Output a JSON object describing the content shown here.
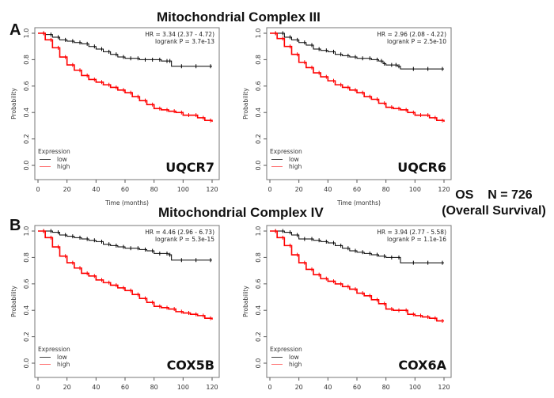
{
  "figure": {
    "section_a": {
      "letter": "A",
      "title": "Mitochondrial Complex III"
    },
    "section_b": {
      "letter": "B",
      "title": "Mitochondrial Complex IV"
    },
    "os_label": "OS    N = 726",
    "os_sublabel": "(Overall Survival)"
  },
  "chart_data": [
    {
      "type": "line",
      "gene": "UQCR7",
      "title": "UQCR7",
      "xlabel": "Time (months)",
      "ylabel": "Probability",
      "xlim": [
        0,
        120
      ],
      "ylim": [
        0,
        1
      ],
      "xticks": [
        "0",
        "20",
        "40",
        "60",
        "80",
        "100",
        "120"
      ],
      "yticks": [
        "0.0",
        "0.2",
        "0.4",
        "0.6",
        "0.8",
        "1.0"
      ],
      "annotation": [
        "HR = 3.34 (2.37 - 4.72)",
        "logrank P = 3.7e-13"
      ],
      "legend": {
        "title": "Expression",
        "placement": "bottom-left",
        "entries": [
          {
            "name": "low",
            "color": "#000000"
          },
          {
            "name": "high",
            "color": "#ff0000"
          }
        ]
      },
      "series": [
        {
          "name": "low",
          "color": "#000000",
          "x": [
            0,
            5,
            10,
            15,
            20,
            25,
            30,
            35,
            40,
            45,
            50,
            55,
            60,
            65,
            70,
            75,
            80,
            85,
            90,
            92,
            100,
            110,
            120
          ],
          "y": [
            1.0,
            0.99,
            0.97,
            0.95,
            0.94,
            0.93,
            0.92,
            0.9,
            0.88,
            0.86,
            0.84,
            0.82,
            0.81,
            0.81,
            0.8,
            0.8,
            0.8,
            0.79,
            0.79,
            0.75,
            0.75,
            0.75,
            0.75
          ]
        },
        {
          "name": "high",
          "color": "#ff0000",
          "x": [
            0,
            5,
            10,
            15,
            20,
            25,
            30,
            35,
            40,
            45,
            50,
            55,
            60,
            65,
            70,
            75,
            80,
            85,
            90,
            95,
            100,
            105,
            110,
            115,
            120
          ],
          "y": [
            1.0,
            0.95,
            0.89,
            0.82,
            0.76,
            0.72,
            0.68,
            0.65,
            0.63,
            0.61,
            0.59,
            0.57,
            0.55,
            0.52,
            0.49,
            0.46,
            0.43,
            0.42,
            0.41,
            0.4,
            0.38,
            0.38,
            0.36,
            0.34,
            0.33
          ]
        }
      ]
    },
    {
      "type": "line",
      "gene": "UQCR6",
      "title": "UQCR6",
      "xlabel": "Time (months)",
      "ylabel": "Probability",
      "xlim": [
        0,
        120
      ],
      "ylim": [
        0,
        1
      ],
      "xticks": [
        "0",
        "20",
        "40",
        "60",
        "80",
        "100",
        "120"
      ],
      "yticks": [
        "0.0",
        "0.2",
        "0.4",
        "0.6",
        "0.8",
        "1.0"
      ],
      "annotation": [
        "HR = 2.96 (2.08 - 4.22)",
        "logrank P = 2.5e-10"
      ],
      "legend": {
        "title": "Expression",
        "placement": "bottom-left",
        "entries": [
          {
            "name": "low",
            "color": "#000000"
          },
          {
            "name": "high",
            "color": "#ff0000"
          }
        ]
      },
      "series": [
        {
          "name": "low",
          "color": "#000000",
          "x": [
            0,
            5,
            10,
            15,
            20,
            25,
            30,
            35,
            40,
            45,
            50,
            55,
            60,
            65,
            70,
            75,
            78,
            80,
            85,
            88,
            90,
            100,
            110,
            120
          ],
          "y": [
            1.0,
            1.0,
            0.97,
            0.95,
            0.93,
            0.91,
            0.88,
            0.87,
            0.86,
            0.84,
            0.83,
            0.82,
            0.81,
            0.81,
            0.8,
            0.79,
            0.77,
            0.76,
            0.76,
            0.75,
            0.73,
            0.73,
            0.73,
            0.73
          ]
        },
        {
          "name": "high",
          "color": "#ff0000",
          "x": [
            0,
            5,
            10,
            15,
            20,
            25,
            30,
            35,
            40,
            45,
            50,
            55,
            60,
            65,
            70,
            75,
            80,
            85,
            90,
            95,
            100,
            105,
            110,
            115,
            120
          ],
          "y": [
            1.0,
            0.96,
            0.9,
            0.84,
            0.78,
            0.74,
            0.7,
            0.67,
            0.64,
            0.61,
            0.59,
            0.57,
            0.55,
            0.52,
            0.5,
            0.47,
            0.44,
            0.43,
            0.42,
            0.4,
            0.38,
            0.38,
            0.36,
            0.34,
            0.33
          ]
        }
      ]
    },
    {
      "type": "line",
      "gene": "COX5B",
      "title": "COX5B",
      "xlabel": "Time (months)",
      "ylabel": "Probability",
      "xlim": [
        0,
        120
      ],
      "ylim": [
        0,
        1
      ],
      "xticks": [
        "0",
        "20",
        "40",
        "60",
        "80",
        "100",
        "120"
      ],
      "yticks": [
        "0.0",
        "0.2",
        "0.4",
        "0.6",
        "0.8",
        "1.0"
      ],
      "annotation": [
        "HR = 4.46 (2.96 - 6.73)",
        "logrank P = 5.3e-15"
      ],
      "legend": {
        "title": "Expression",
        "placement": "bottom-left",
        "entries": [
          {
            "name": "low",
            "color": "#000000"
          },
          {
            "name": "high",
            "color": "#ff0000"
          }
        ]
      },
      "series": [
        {
          "name": "low",
          "color": "#000000",
          "x": [
            0,
            5,
            10,
            15,
            20,
            25,
            30,
            35,
            40,
            45,
            50,
            55,
            60,
            65,
            70,
            75,
            80,
            85,
            90,
            92,
            100,
            110,
            120
          ],
          "y": [
            1.0,
            1.0,
            0.99,
            0.97,
            0.96,
            0.95,
            0.94,
            0.93,
            0.92,
            0.9,
            0.89,
            0.88,
            0.87,
            0.87,
            0.86,
            0.85,
            0.83,
            0.83,
            0.82,
            0.78,
            0.78,
            0.78,
            0.78
          ]
        },
        {
          "name": "high",
          "color": "#ff0000",
          "x": [
            0,
            5,
            10,
            15,
            20,
            25,
            30,
            35,
            40,
            45,
            50,
            55,
            60,
            65,
            70,
            75,
            80,
            85,
            90,
            95,
            100,
            105,
            110,
            115,
            120
          ],
          "y": [
            1.0,
            0.95,
            0.88,
            0.81,
            0.76,
            0.72,
            0.68,
            0.66,
            0.63,
            0.61,
            0.59,
            0.57,
            0.55,
            0.52,
            0.49,
            0.46,
            0.43,
            0.42,
            0.41,
            0.39,
            0.38,
            0.37,
            0.36,
            0.34,
            0.33
          ]
        }
      ]
    },
    {
      "type": "line",
      "gene": "COX6A",
      "title": "COX6A",
      "xlabel": "Time (months)",
      "ylabel": "Probability",
      "xlim": [
        0,
        120
      ],
      "ylim": [
        0,
        1
      ],
      "xticks": [
        "0",
        "20",
        "40",
        "60",
        "80",
        "100",
        "120"
      ],
      "yticks": [
        "0.0",
        "0.2",
        "0.4",
        "0.6",
        "0.8",
        "1.0"
      ],
      "annotation": [
        "HR = 3.94 (2.77 - 5.58)",
        "logrank P = 1.1e-16"
      ],
      "legend": {
        "title": "Expression",
        "placement": "bottom-left",
        "entries": [
          {
            "name": "low",
            "color": "#000000"
          },
          {
            "name": "high",
            "color": "#ff0000"
          }
        ]
      },
      "series": [
        {
          "name": "low",
          "color": "#000000",
          "x": [
            0,
            5,
            10,
            15,
            20,
            25,
            30,
            35,
            40,
            45,
            50,
            55,
            60,
            65,
            70,
            75,
            80,
            85,
            90,
            100,
            110,
            120
          ],
          "y": [
            1.0,
            1.0,
            0.99,
            0.97,
            0.94,
            0.94,
            0.93,
            0.92,
            0.91,
            0.89,
            0.87,
            0.85,
            0.84,
            0.83,
            0.82,
            0.81,
            0.8,
            0.8,
            0.76,
            0.76,
            0.76,
            0.76
          ]
        },
        {
          "name": "high",
          "color": "#ff0000",
          "x": [
            0,
            5,
            10,
            15,
            20,
            25,
            30,
            35,
            40,
            45,
            50,
            55,
            60,
            65,
            70,
            75,
            80,
            85,
            90,
            95,
            100,
            105,
            110,
            115,
            120
          ],
          "y": [
            1.0,
            0.95,
            0.89,
            0.82,
            0.76,
            0.71,
            0.67,
            0.64,
            0.62,
            0.6,
            0.58,
            0.56,
            0.53,
            0.51,
            0.48,
            0.45,
            0.41,
            0.4,
            0.4,
            0.37,
            0.36,
            0.35,
            0.34,
            0.32,
            0.32
          ]
        }
      ]
    }
  ]
}
